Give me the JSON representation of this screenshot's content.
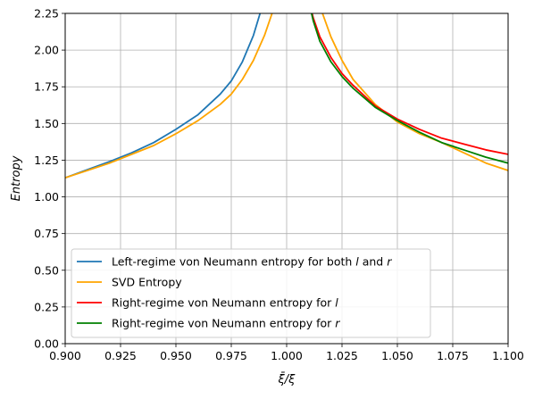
{
  "chart_data": {
    "type": "line",
    "xlabel": "ξ̄/ξ",
    "ylabel": "Entropy",
    "xlim": [
      0.9,
      1.1
    ],
    "ylim": [
      0.0,
      2.25
    ],
    "grid": true,
    "legend_position": "lower-left",
    "x_ticks": [
      "0.900",
      "0.925",
      "0.950",
      "0.975",
      "1.000",
      "1.025",
      "1.050",
      "1.075",
      "1.100"
    ],
    "y_ticks": [
      "0.00",
      "0.25",
      "0.50",
      "0.75",
      "1.00",
      "1.25",
      "1.50",
      "1.75",
      "2.00",
      "2.25"
    ],
    "series": [
      {
        "name": "Left-regime von Neumann entropy for both l and r",
        "legend_parts": [
          [
            "Left-regime von Neumann entropy for both ",
            false
          ],
          [
            "l",
            true
          ],
          [
            " and ",
            false
          ],
          [
            "r",
            true
          ]
        ],
        "color": "#1f77b4",
        "x": [
          0.9,
          0.91,
          0.92,
          0.93,
          0.94,
          0.95,
          0.96,
          0.97,
          0.975,
          0.98,
          0.985,
          0.988,
          0.99
        ],
        "y": [
          1.13,
          1.185,
          1.24,
          1.3,
          1.37,
          1.46,
          1.56,
          1.7,
          1.79,
          1.92,
          2.1,
          2.25,
          2.4
        ]
      },
      {
        "name": "SVD Entropy",
        "legend_parts": [
          [
            "SVD Entropy",
            false
          ]
        ],
        "color": "#ffa500",
        "x": [
          0.9,
          0.91,
          0.92,
          0.93,
          0.94,
          0.95,
          0.96,
          0.97,
          0.975,
          0.98,
          0.985,
          0.99,
          0.995,
          0.997,
          null,
          1.013,
          1.015,
          1.02,
          1.025,
          1.03,
          1.04,
          1.05,
          1.06,
          1.07,
          1.08,
          1.09,
          1.1
        ],
        "y": [
          1.13,
          1.18,
          1.23,
          1.29,
          1.35,
          1.43,
          1.52,
          1.63,
          1.7,
          1.8,
          1.93,
          2.1,
          2.32,
          2.45,
          null,
          2.45,
          2.3,
          2.09,
          1.93,
          1.8,
          1.63,
          1.51,
          1.43,
          1.37,
          1.3,
          1.23,
          1.18
        ]
      },
      {
        "name": "Right-regime von Neumann entropy for l",
        "legend_parts": [
          [
            "Right-regime von Neumann entropy for ",
            false
          ],
          [
            "l",
            true
          ]
        ],
        "color": "#ff0000",
        "x": [
          1.009,
          1.012,
          1.015,
          1.02,
          1.025,
          1.03,
          1.04,
          1.05,
          1.06,
          1.07,
          1.08,
          1.09,
          1.1
        ],
        "y": [
          2.4,
          2.22,
          2.09,
          1.95,
          1.84,
          1.76,
          1.62,
          1.53,
          1.46,
          1.4,
          1.36,
          1.32,
          1.29
        ]
      },
      {
        "name": "Right-regime von Neumann entropy for r",
        "legend_parts": [
          [
            "Right-regime von Neumann entropy for ",
            false
          ],
          [
            "r",
            true
          ]
        ],
        "color": "#008000",
        "x": [
          1.009,
          1.012,
          1.015,
          1.02,
          1.025,
          1.03,
          1.04,
          1.05,
          1.06,
          1.07,
          1.08,
          1.09,
          1.1
        ],
        "y": [
          2.4,
          2.2,
          2.06,
          1.92,
          1.82,
          1.74,
          1.61,
          1.52,
          1.44,
          1.37,
          1.32,
          1.27,
          1.23
        ]
      }
    ]
  }
}
